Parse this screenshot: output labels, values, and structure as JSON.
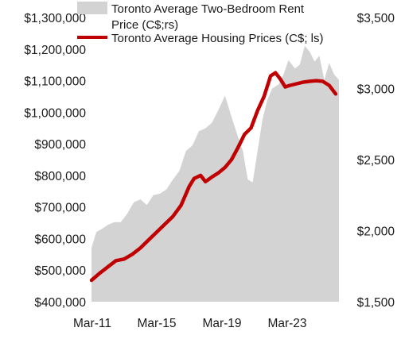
{
  "chart_data": {
    "type": "line",
    "title": "",
    "xlabel": "",
    "x_tick_labels": [
      "Mar-11",
      "Mar-15",
      "Mar-19",
      "Mar-23"
    ],
    "x_range": [
      2011.0,
      2026.2
    ],
    "left_axis": {
      "ylim": [
        400000,
        1300000
      ],
      "ticks": [
        1300000,
        1200000,
        1100000,
        1000000,
        900000,
        800000,
        700000,
        600000,
        500000,
        400000
      ],
      "tick_labels": [
        "$1,300,000",
        "$1,200,000",
        "$1,100,000",
        "$1,000,000",
        "$900,000",
        "$800,000",
        "$700,000",
        "$600,000",
        "$500,000",
        "$400,000"
      ]
    },
    "right_axis": {
      "ylim": [
        1500,
        3500
      ],
      "ticks": [
        3500,
        3000,
        2500,
        2000,
        1500
      ],
      "tick_labels": [
        "$3,500",
        "$3,000",
        "$2,500",
        "$2,000",
        "$1,500"
      ]
    },
    "grid": false,
    "legend_placement": "top",
    "series": [
      {
        "name": "Toronto Average Two-Bedroom Rent Price (C$;rs)",
        "kind": "area",
        "axis": "right",
        "color": "#d3d3d3",
        "x": [
          2011.0,
          2011.3,
          2011.6,
          2012.0,
          2012.4,
          2012.8,
          2013.2,
          2013.6,
          2014.0,
          2014.4,
          2014.8,
          2015.2,
          2015.6,
          2016.0,
          2016.4,
          2016.8,
          2017.2,
          2017.6,
          2018.0,
          2018.4,
          2018.8,
          2019.2,
          2019.6,
          2020.0,
          2020.3,
          2020.6,
          2020.9,
          2021.2,
          2021.5,
          2021.8,
          2022.1,
          2022.5,
          2022.8,
          2023.1,
          2023.5,
          2023.8,
          2024.1,
          2024.4,
          2024.7,
          2025.0,
          2025.3,
          2025.6,
          2025.9,
          2026.2
        ],
        "y": [
          1880,
          1990,
          2010,
          2040,
          2060,
          2060,
          2120,
          2200,
          2220,
          2180,
          2250,
          2260,
          2290,
          2360,
          2420,
          2560,
          2600,
          2700,
          2720,
          2760,
          2850,
          2950,
          2800,
          2660,
          2560,
          2360,
          2340,
          2560,
          2780,
          2920,
          3000,
          3030,
          3100,
          3200,
          3140,
          3170,
          3300,
          3260,
          3190,
          3230,
          3060,
          3180,
          3100,
          3060
        ]
      },
      {
        "name": "Toronto Average Housing Prices (C$; ls)",
        "kind": "line",
        "axis": "left",
        "color": "#c00000",
        "x": [
          2011.0,
          2011.5,
          2012.0,
          2012.5,
          2013.0,
          2013.5,
          2014.0,
          2014.5,
          2015.0,
          2015.5,
          2016.0,
          2016.5,
          2017.0,
          2017.3,
          2017.7,
          2018.0,
          2018.4,
          2018.8,
          2019.2,
          2019.6,
          2020.0,
          2020.4,
          2020.8,
          2021.2,
          2021.6,
          2022.0,
          2022.3,
          2022.6,
          2022.9,
          2023.2,
          2023.6,
          2024.0,
          2024.4,
          2024.8,
          2025.2,
          2025.6,
          2026.0
        ],
        "y": [
          468000,
          490000,
          510000,
          530000,
          535000,
          550000,
          570000,
          595000,
          620000,
          645000,
          670000,
          705000,
          765000,
          790000,
          800000,
          780000,
          795000,
          808000,
          825000,
          850000,
          888000,
          930000,
          950000,
          1005000,
          1050000,
          1115000,
          1125000,
          1105000,
          1080000,
          1085000,
          1090000,
          1095000,
          1098000,
          1100000,
          1098000,
          1085000,
          1058000
        ]
      }
    ]
  }
}
